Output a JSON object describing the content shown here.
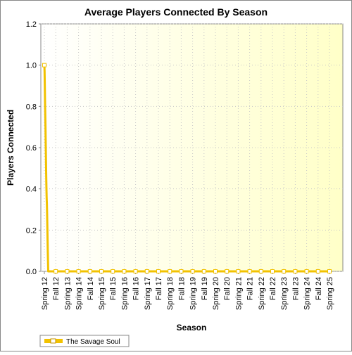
{
  "chart_data": {
    "type": "line",
    "title": "Average Players Connected By Season",
    "xlabel": "Season",
    "ylabel": "Players Connected",
    "ylim": [
      0,
      1.2
    ],
    "yticks": [
      "0.0",
      "0.2",
      "0.4",
      "0.6",
      "0.8",
      "1.0",
      "1.2"
    ],
    "grid": true,
    "legend": "bottom-left",
    "x_tick_labels": [
      "Spring 12",
      "Fall 12",
      "Spring 13",
      "Spring 14",
      "Fall 14",
      "Spring 15",
      "Fall 15",
      "Spring 16",
      "Fall 16",
      "Spring 17",
      "Fall 17",
      "Spring 18",
      "Fall 18",
      "Spring 19",
      "Fall 19",
      "Spring 20",
      "Fall 20",
      "Spring 21",
      "Fall 21",
      "Spring 22",
      "Fall 22",
      "Spring 23",
      "Fall 23",
      "Spring 24",
      "Fall 24",
      "Spring 25"
    ],
    "series": [
      {
        "name": "The Savage Soul",
        "color": "#f2c200",
        "marker_fill": "#ffffff",
        "points": [
          [
            0.0,
            1.0
          ],
          [
            0.02,
            0.97
          ],
          [
            0.04,
            0.9
          ],
          [
            0.06,
            0.82
          ],
          [
            0.08,
            0.76
          ],
          [
            0.1,
            0.7
          ],
          [
            0.12,
            0.62
          ],
          [
            0.14,
            0.55
          ],
          [
            0.16,
            0.47
          ],
          [
            0.18,
            0.41
          ],
          [
            0.2,
            0.36
          ],
          [
            0.22,
            0.33
          ],
          [
            0.24,
            0.28
          ],
          [
            0.26,
            0.22
          ],
          [
            0.28,
            0.16
          ],
          [
            0.3,
            0.1
          ],
          [
            0.32,
            0.05
          ],
          [
            0.34,
            0.0
          ],
          [
            0.4,
            0.0
          ],
          [
            1.0,
            0.0
          ],
          [
            2.0,
            0.0
          ],
          [
            3.0,
            0.0
          ],
          [
            4.0,
            0.0
          ],
          [
            5.0,
            0.0
          ],
          [
            6.0,
            0.0
          ],
          [
            7.0,
            0.0
          ],
          [
            8.0,
            0.0
          ],
          [
            9.0,
            0.0
          ],
          [
            10.0,
            0.0
          ],
          [
            11.0,
            0.0
          ],
          [
            12.0,
            0.0
          ],
          [
            13.0,
            0.0
          ],
          [
            14.0,
            0.0
          ],
          [
            15.0,
            0.0
          ],
          [
            16.0,
            0.0
          ],
          [
            17.0,
            0.0
          ],
          [
            18.0,
            0.0
          ],
          [
            19.0,
            0.0
          ],
          [
            20.0,
            0.0
          ],
          [
            21.0,
            0.0
          ],
          [
            22.0,
            0.0
          ],
          [
            23.0,
            0.0
          ],
          [
            24.0,
            0.0
          ],
          [
            25.0,
            0.0
          ]
        ]
      }
    ]
  },
  "colors": {
    "plot_bg_left": "#ffffff",
    "plot_bg_right": "#ffffc8",
    "grid": "#c8c8c8",
    "border": "#888888"
  }
}
